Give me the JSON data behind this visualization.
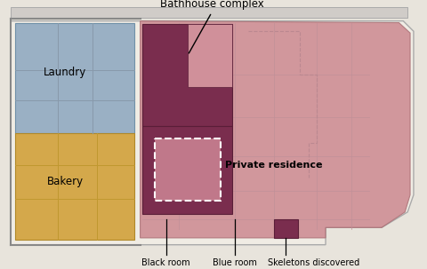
{
  "labels": {
    "laundry": "Laundry",
    "bakery": "Bakery",
    "private_residence": "Private residence",
    "black_room": "Black room",
    "blue_room": "Blue room",
    "skeletons": "Skeletons discovered",
    "bathhouse": "Bathhouse complex"
  },
  "colors": {
    "laundry": "#9ab0c4",
    "bakery": "#d4a84b",
    "private_residence": "#cc8890",
    "bathhouse_dark": "#7a2d4e",
    "bg_outside": "#e8e4dc",
    "building_bg": "#f0ece4",
    "wall_fill": "#d0c8c0",
    "room_wall": "#b0a8a0"
  }
}
